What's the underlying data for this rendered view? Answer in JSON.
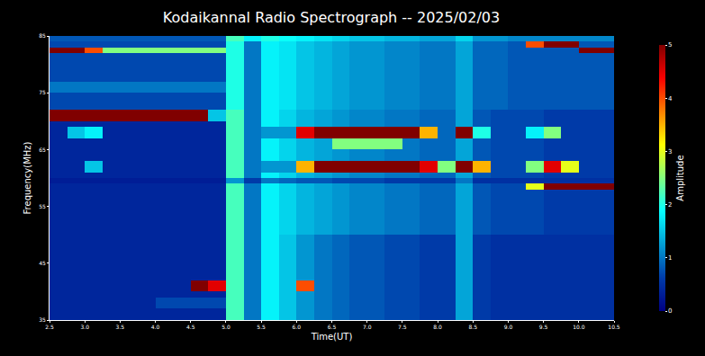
{
  "chart_data": {
    "type": "heatmap",
    "title": "Kodaikannal Radio Spectrograph -- 2025/02/03",
    "x_label": "Time(UT)",
    "y_label": "Frequency(MHz)",
    "color": "Jet",
    "grid": false,
    "xlim": [
      2.5,
      10.5
    ],
    "ylim": [
      35,
      85
    ],
    "xticks": [
      {
        "value": 2.5,
        "label": "2.5"
      },
      {
        "value": 3,
        "label": "3.0"
      },
      {
        "value": 3.5,
        "label": "3.5"
      },
      {
        "value": 4,
        "label": "4.0"
      },
      {
        "value": 4.5,
        "label": "4.5"
      },
      {
        "value": 5,
        "label": "5.0"
      },
      {
        "value": 5.5,
        "label": "5.5"
      },
      {
        "value": 6,
        "label": "6.0"
      },
      {
        "value": 6.5,
        "label": "6.5"
      },
      {
        "value": 7,
        "label": "7.0"
      },
      {
        "value": 7.5,
        "label": "7.5"
      },
      {
        "value": 8,
        "label": "8.0"
      },
      {
        "value": 8.5,
        "label": "8.5"
      },
      {
        "value": 9,
        "label": "9.0"
      },
      {
        "value": 9.5,
        "label": "9.5"
      },
      {
        "value": 10,
        "label": "10.0"
      },
      {
        "value": 10.5,
        "label": "10.5"
      }
    ],
    "yticks": [
      35,
      45,
      55,
      65,
      75,
      85
    ],
    "colorbar": {
      "title": "Amplitude",
      "range": [
        0,
        5
      ],
      "ticks": [
        0,
        1,
        2,
        3,
        4,
        5
      ]
    },
    "x": [
      2.5,
      2.75,
      3.0,
      3.25,
      3.5,
      3.75,
      4.0,
      4.25,
      4.5,
      4.75,
      5.0,
      5.25,
      5.5,
      5.75,
      6.0,
      6.25,
      6.5,
      6.75,
      7.0,
      7.25,
      7.5,
      7.75,
      8.0,
      8.25,
      8.5,
      8.75,
      9.0,
      9.25,
      9.5,
      9.75,
      10.0,
      10.25,
      10.5
    ],
    "y": [
      35,
      37,
      39,
      40,
      42,
      44,
      50,
      57,
      58,
      59,
      60,
      61,
      63,
      65,
      67,
      69,
      70,
      72,
      75,
      77,
      81,
      82,
      83,
      84,
      85
    ],
    "z": [
      [
        0.4,
        0.4,
        0.4,
        0.4,
        0.4,
        0.4,
        0.4,
        0.4,
        0.4,
        0.4,
        2.2,
        1.0,
        1.8,
        1.5,
        1.2,
        1.0,
        0.9,
        0.8,
        0.8,
        0.7,
        0.7,
        0.6,
        0.6,
        1.3,
        0.6,
        0.5,
        0.5,
        0.5,
        0.5,
        0.5,
        0.5,
        0.5
      ],
      [
        0.4,
        0.4,
        0.4,
        0.4,
        0.4,
        0.4,
        0.7,
        0.7,
        0.7,
        0.7,
        2.2,
        1.0,
        1.8,
        1.5,
        1.2,
        1.0,
        0.9,
        0.8,
        0.8,
        0.7,
        0.7,
        0.6,
        0.6,
        1.3,
        0.6,
        0.5,
        0.5,
        0.5,
        0.5,
        0.5,
        0.5,
        0.5
      ],
      [
        0.4,
        0.4,
        0.4,
        0.4,
        0.4,
        0.4,
        0.4,
        0.4,
        0.4,
        0.4,
        2.2,
        1.0,
        1.8,
        1.5,
        1.2,
        1.0,
        0.9,
        0.8,
        0.8,
        0.7,
        0.7,
        0.6,
        0.6,
        1.3,
        0.6,
        0.5,
        0.5,
        0.5,
        0.5,
        0.5,
        0.5,
        0.5
      ],
      [
        0.4,
        0.4,
        0.4,
        0.4,
        0.4,
        0.4,
        0.4,
        0.4,
        5,
        4.5,
        2.2,
        1.0,
        1.8,
        1.5,
        4.0,
        1.0,
        0.9,
        0.8,
        0.8,
        0.7,
        0.7,
        0.6,
        0.6,
        1.3,
        0.6,
        0.5,
        0.5,
        0.5,
        0.5,
        0.5,
        0.5,
        0.5
      ],
      [
        0.4,
        0.4,
        0.4,
        0.4,
        0.4,
        0.4,
        0.4,
        0.4,
        0.4,
        0.4,
        2.2,
        1.0,
        1.8,
        1.5,
        1.2,
        1.0,
        0.9,
        0.8,
        0.8,
        0.7,
        0.7,
        0.6,
        0.6,
        1.3,
        0.6,
        0.5,
        0.5,
        0.5,
        0.5,
        0.5,
        0.5,
        0.5
      ],
      [
        0.4,
        0.4,
        0.4,
        0.4,
        0.4,
        0.4,
        0.4,
        0.4,
        0.4,
        0.4,
        2.2,
        1.0,
        1.8,
        1.5,
        1.2,
        1.0,
        0.9,
        0.8,
        0.8,
        0.7,
        0.7,
        0.6,
        0.6,
        1.3,
        0.6,
        0.5,
        0.5,
        0.5,
        0.5,
        0.5,
        0.5,
        0.5
      ],
      [
        0.4,
        0.4,
        0.4,
        0.4,
        0.4,
        0.4,
        0.4,
        0.4,
        0.4,
        0.4,
        2.2,
        1.0,
        1.8,
        1.6,
        1.4,
        1.3,
        1.2,
        1.1,
        1.1,
        1.0,
        1.0,
        0.9,
        0.9,
        1.3,
        0.8,
        0.7,
        0.7,
        0.7,
        0.6,
        0.6,
        0.6,
        0.6
      ],
      [
        0.4,
        0.4,
        0.4,
        0.4,
        0.4,
        0.4,
        0.4,
        0.4,
        0.4,
        0.4,
        2.2,
        1.0,
        1.8,
        1.6,
        1.4,
        1.3,
        1.2,
        1.1,
        1.1,
        1.0,
        1.0,
        0.9,
        0.9,
        1.3,
        0.8,
        0.7,
        0.7,
        0.7,
        0.6,
        0.6,
        0.6,
        0.6
      ],
      [
        0.4,
        0.4,
        0.4,
        0.4,
        0.4,
        0.4,
        0.4,
        0.4,
        0.4,
        0.4,
        2.2,
        1.0,
        1.8,
        1.6,
        1.4,
        1.3,
        1.2,
        1.1,
        1.1,
        1.0,
        1.0,
        0.9,
        0.9,
        1.3,
        0.8,
        0.7,
        0.7,
        3,
        5,
        5,
        5,
        5
      ],
      [
        0.3,
        0.3,
        0.3,
        0.3,
        0.3,
        0.3,
        0.3,
        0.3,
        0.3,
        0.3,
        1.2,
        0.6,
        1.0,
        0.9,
        0.8,
        0.8,
        0.7,
        0.7,
        0.7,
        0.6,
        0.6,
        0.6,
        0.6,
        1.0,
        0.5,
        0.5,
        0.5,
        0.5,
        0.5,
        0.5,
        0.5,
        0.5
      ],
      [
        0.4,
        0.4,
        0.4,
        0.4,
        0.4,
        0.4,
        0.4,
        0.4,
        0.4,
        0.4,
        2.2,
        1.0,
        1.8,
        1.6,
        1.4,
        1.3,
        1.2,
        1.1,
        1.1,
        1.0,
        1.0,
        0.9,
        0.9,
        1.3,
        0.8,
        0.7,
        0.7,
        0.7,
        0.6,
        0.6,
        0.6,
        0.6
      ],
      [
        0.4,
        0.4,
        1.5,
        0.4,
        0.4,
        0.4,
        0.4,
        0.4,
        0.4,
        0.4,
        2.2,
        1.0,
        1.2,
        1.2,
        3.5,
        5,
        5,
        5,
        5,
        5,
        5,
        4.5,
        2.5,
        5,
        3.5,
        0.7,
        0.7,
        2.5,
        4.5,
        3.0,
        0.6,
        0.6
      ],
      [
        0.4,
        0.4,
        0.4,
        0.4,
        0.4,
        0.4,
        0.4,
        0.4,
        0.4,
        0.4,
        2.2,
        1.0,
        1.8,
        1.6,
        1.4,
        1.3,
        1.2,
        1.1,
        1.1,
        1.0,
        1.0,
        0.9,
        0.9,
        1.3,
        0.8,
        0.7,
        0.7,
        0.7,
        0.6,
        0.6,
        0.6,
        0.6
      ],
      [
        0.4,
        0.4,
        0.4,
        0.4,
        0.4,
        0.4,
        0.4,
        0.4,
        0.4,
        0.4,
        2.2,
        1.0,
        1.8,
        1.6,
        1.4,
        1.3,
        2.5,
        2.5,
        2.5,
        2.5,
        1.0,
        0.9,
        0.9,
        1.3,
        0.8,
        0.7,
        0.7,
        0.7,
        0.6,
        0.6,
        0.6,
        0.6
      ],
      [
        0.4,
        1.5,
        1.8,
        0.4,
        0.4,
        0.4,
        0.4,
        0.4,
        0.4,
        0.4,
        2.2,
        1.0,
        1.2,
        1.2,
        4.5,
        5,
        5,
        5,
        5,
        5,
        5,
        3.5,
        0.9,
        5,
        2.0,
        0.7,
        0.7,
        1.8,
        2.5,
        0.6,
        0.6,
        0.6
      ],
      [
        0.4,
        0.4,
        0.4,
        0.4,
        0.4,
        0.4,
        0.4,
        0.4,
        0.4,
        0.4,
        2.2,
        1.0,
        1.8,
        1.6,
        1.4,
        1.3,
        1.2,
        1.1,
        1.1,
        1.0,
        1.0,
        0.9,
        0.9,
        1.3,
        0.8,
        0.7,
        0.7,
        0.7,
        0.6,
        0.6,
        0.6,
        0.6
      ],
      [
        5,
        5,
        5,
        5,
        5,
        5,
        5,
        5,
        5,
        1.5,
        2.2,
        1.0,
        1.8,
        1.6,
        1.4,
        1.3,
        1.2,
        1.1,
        1.1,
        1.0,
        1.0,
        0.9,
        0.9,
        1.3,
        0.8,
        0.7,
        0.7,
        0.7,
        0.6,
        0.6,
        0.6,
        0.6
      ],
      [
        0.7,
        0.7,
        0.7,
        0.7,
        0.7,
        0.7,
        0.7,
        0.7,
        0.7,
        0.7,
        2.0,
        1.0,
        1.8,
        1.7,
        1.5,
        1.4,
        1.3,
        1.2,
        1.2,
        1.1,
        1.1,
        1.0,
        1.0,
        1.3,
        0.9,
        0.9,
        0.8,
        0.8,
        0.8,
        0.8,
        0.8,
        0.8
      ],
      [
        1.0,
        1.0,
        1.0,
        1.0,
        1.0,
        1.0,
        1.0,
        1.0,
        1.0,
        1.0,
        2.0,
        1.0,
        1.8,
        1.7,
        1.5,
        1.4,
        1.3,
        1.2,
        1.2,
        1.1,
        1.1,
        1.0,
        1.0,
        1.3,
        0.9,
        0.9,
        0.8,
        0.8,
        0.8,
        0.8,
        0.8,
        0.8
      ],
      [
        0.7,
        0.7,
        0.7,
        0.7,
        0.7,
        0.7,
        0.7,
        0.7,
        0.7,
        0.7,
        2.0,
        1.0,
        1.8,
        1.7,
        1.5,
        1.4,
        1.3,
        1.2,
        1.2,
        1.1,
        1.1,
        1.0,
        1.0,
        1.3,
        0.9,
        0.9,
        0.8,
        0.8,
        0.8,
        0.8,
        0.8,
        0.8
      ],
      [
        0.7,
        0.7,
        0.7,
        0.7,
        0.7,
        0.7,
        0.7,
        0.7,
        0.7,
        0.7,
        2.0,
        1.0,
        1.8,
        1.7,
        1.5,
        1.4,
        1.3,
        1.2,
        1.2,
        1.1,
        1.1,
        1.0,
        1.0,
        1.3,
        0.9,
        0.9,
        0.8,
        0.8,
        0.8,
        0.8,
        0.8,
        0.8
      ],
      [
        5,
        5,
        4,
        2.5,
        2.5,
        2.5,
        2.5,
        2.5,
        2.5,
        2.5,
        2.0,
        1.0,
        1.8,
        1.7,
        1.5,
        1.4,
        1.3,
        1.2,
        1.2,
        1.1,
        1.1,
        1.0,
        1.0,
        1.3,
        0.9,
        0.9,
        0.8,
        0.8,
        0.8,
        0.8,
        5,
        5
      ],
      [
        0.7,
        0.7,
        0.7,
        0.7,
        0.7,
        0.7,
        0.7,
        0.7,
        0.7,
        0.7,
        2.0,
        1.0,
        1.8,
        1.7,
        1.5,
        1.4,
        1.3,
        1.2,
        1.2,
        1.1,
        1.1,
        1.0,
        1.0,
        1.3,
        0.9,
        0.9,
        0.8,
        4,
        5,
        5,
        0.8,
        0.8
      ],
      [
        0.8,
        0.8,
        0.8,
        0.8,
        0.8,
        0.8,
        0.8,
        0.8,
        0.8,
        0.8,
        2.2,
        1.8,
        2.0,
        1.9,
        1.8,
        1.7,
        1.6,
        1.5,
        1.5,
        1.4,
        1.4,
        1.3,
        1.3,
        1.6,
        1.2,
        1.2,
        1.1,
        1.1,
        1.1,
        1.1,
        1.1,
        1.1
      ]
    ]
  }
}
